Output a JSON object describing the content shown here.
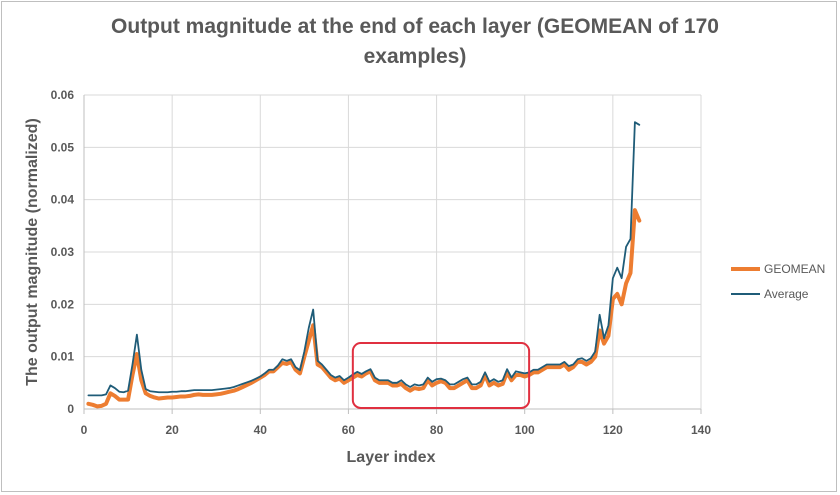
{
  "chart_data": {
    "type": "line",
    "title": "Output magnitude at the end of each layer (GEOMEAN of 170 examples)",
    "xlabel": "Layer index",
    "ylabel": "The output magnitude (normalized)",
    "xlim": [
      0,
      140
    ],
    "ylim": [
      0,
      0.06
    ],
    "x_ticks": [
      0,
      20,
      40,
      60,
      80,
      100,
      120,
      140
    ],
    "y_ticks": [
      0,
      0.01,
      0.02,
      0.03,
      0.04,
      0.05,
      0.06
    ],
    "x_tick_labels": [
      "0",
      "20",
      "40",
      "60",
      "80",
      "100",
      "120",
      "140"
    ],
    "y_tick_labels": [
      "0",
      "0.01",
      "0.02",
      "0.03",
      "0.04",
      "0.05",
      "0.06"
    ],
    "grid": "vertical and horizontal",
    "legend_position": "right",
    "highlight_box": {
      "x_range": [
        61,
        101
      ],
      "y_range": [
        0.0002,
        0.0126
      ],
      "color": "#e03040"
    },
    "series": [
      {
        "name": "GEOMEAN",
        "color": "#ed7d31",
        "x": [
          1,
          2,
          3,
          4,
          5,
          6,
          7,
          8,
          9,
          10,
          11,
          12,
          13,
          14,
          15,
          16,
          17,
          18,
          19,
          20,
          21,
          22,
          23,
          24,
          25,
          26,
          27,
          28,
          29,
          30,
          31,
          32,
          33,
          34,
          35,
          36,
          37,
          38,
          39,
          40,
          41,
          42,
          43,
          44,
          45,
          46,
          47,
          48,
          49,
          50,
          51,
          52,
          53,
          54,
          55,
          56,
          57,
          58,
          59,
          60,
          61,
          62,
          63,
          64,
          65,
          66,
          67,
          68,
          69,
          70,
          71,
          72,
          73,
          74,
          75,
          76,
          77,
          78,
          79,
          80,
          81,
          82,
          83,
          84,
          85,
          86,
          87,
          88,
          89,
          90,
          91,
          92,
          93,
          94,
          95,
          96,
          97,
          98,
          99,
          100,
          101,
          102,
          103,
          104,
          105,
          106,
          107,
          108,
          109,
          110,
          111,
          112,
          113,
          114,
          115,
          116,
          117,
          118,
          119,
          120,
          121,
          122,
          123,
          124,
          125,
          126
        ],
        "values": [
          0.001,
          0.0008,
          0.0005,
          0.0006,
          0.001,
          0.003,
          0.0025,
          0.0018,
          0.0018,
          0.0018,
          0.0065,
          0.0105,
          0.0055,
          0.003,
          0.0025,
          0.0022,
          0.002,
          0.0021,
          0.0022,
          0.0022,
          0.0023,
          0.0024,
          0.0024,
          0.0025,
          0.0027,
          0.0028,
          0.0027,
          0.0027,
          0.0027,
          0.0028,
          0.0029,
          0.0031,
          0.0033,
          0.0035,
          0.0038,
          0.0042,
          0.0046,
          0.005,
          0.0055,
          0.006,
          0.0065,
          0.0072,
          0.0072,
          0.008,
          0.0088,
          0.0086,
          0.009,
          0.0075,
          0.0068,
          0.01,
          0.013,
          0.016,
          0.0085,
          0.008,
          0.007,
          0.006,
          0.0055,
          0.0058,
          0.005,
          0.0055,
          0.006,
          0.0065,
          0.0062,
          0.0068,
          0.0072,
          0.0055,
          0.005,
          0.005,
          0.005,
          0.0045,
          0.0045,
          0.0048,
          0.004,
          0.0035,
          0.004,
          0.0038,
          0.004,
          0.0055,
          0.0045,
          0.005,
          0.0053,
          0.005,
          0.004,
          0.004,
          0.0045,
          0.005,
          0.0055,
          0.004,
          0.004,
          0.0045,
          0.0065,
          0.0045,
          0.005,
          0.0045,
          0.0048,
          0.007,
          0.0055,
          0.0065,
          0.0065,
          0.0062,
          0.0065,
          0.007,
          0.007,
          0.0075,
          0.008,
          0.008,
          0.008,
          0.008,
          0.0085,
          0.0075,
          0.008,
          0.009,
          0.009,
          0.0085,
          0.009,
          0.01,
          0.015,
          0.0125,
          0.014,
          0.021,
          0.022,
          0.02,
          0.024,
          0.026,
          0.038,
          0.036
        ]
      },
      {
        "name": "Average",
        "color": "#1f5c78",
        "x": [
          1,
          2,
          3,
          4,
          5,
          6,
          7,
          8,
          9,
          10,
          11,
          12,
          13,
          14,
          15,
          16,
          17,
          18,
          19,
          20,
          21,
          22,
          23,
          24,
          25,
          26,
          27,
          28,
          29,
          30,
          31,
          32,
          33,
          34,
          35,
          36,
          37,
          38,
          39,
          40,
          41,
          42,
          43,
          44,
          45,
          46,
          47,
          48,
          49,
          50,
          51,
          52,
          53,
          54,
          55,
          56,
          57,
          58,
          59,
          60,
          61,
          62,
          63,
          64,
          65,
          66,
          67,
          68,
          69,
          70,
          71,
          72,
          73,
          74,
          75,
          76,
          77,
          78,
          79,
          80,
          81,
          82,
          83,
          84,
          85,
          86,
          87,
          88,
          89,
          90,
          91,
          92,
          93,
          94,
          95,
          96,
          97,
          98,
          99,
          100,
          101,
          102,
          103,
          104,
          105,
          106,
          107,
          108,
          109,
          110,
          111,
          112,
          113,
          114,
          115,
          116,
          117,
          118,
          119,
          120,
          121,
          122,
          123,
          124,
          125,
          126
        ],
        "values": [
          0.0026,
          0.0026,
          0.0026,
          0.0026,
          0.0028,
          0.0045,
          0.004,
          0.0033,
          0.0032,
          0.0035,
          0.0085,
          0.0142,
          0.0075,
          0.0038,
          0.0034,
          0.0033,
          0.0032,
          0.0032,
          0.0032,
          0.0033,
          0.0033,
          0.0034,
          0.0034,
          0.0035,
          0.0036,
          0.0036,
          0.0036,
          0.0036,
          0.0036,
          0.0037,
          0.0038,
          0.0039,
          0.004,
          0.0042,
          0.0045,
          0.0048,
          0.0051,
          0.0054,
          0.0058,
          0.0062,
          0.0068,
          0.0075,
          0.0075,
          0.0083,
          0.0095,
          0.0092,
          0.0095,
          0.008,
          0.0074,
          0.011,
          0.0155,
          0.019,
          0.0092,
          0.0085,
          0.0075,
          0.0065,
          0.006,
          0.0063,
          0.0055,
          0.006,
          0.0066,
          0.0071,
          0.0067,
          0.0072,
          0.0076,
          0.006,
          0.0055,
          0.0055,
          0.0055,
          0.005,
          0.005,
          0.0055,
          0.0047,
          0.0042,
          0.0047,
          0.0045,
          0.0047,
          0.006,
          0.0052,
          0.0057,
          0.0058,
          0.0055,
          0.0047,
          0.0047,
          0.0052,
          0.0057,
          0.006,
          0.0047,
          0.0047,
          0.0052,
          0.007,
          0.0052,
          0.0057,
          0.0052,
          0.0055,
          0.0076,
          0.006,
          0.0072,
          0.007,
          0.0068,
          0.007,
          0.0075,
          0.0075,
          0.008,
          0.0085,
          0.0085,
          0.0085,
          0.0085,
          0.009,
          0.0082,
          0.0085,
          0.0095,
          0.0097,
          0.0092,
          0.0097,
          0.011,
          0.018,
          0.0135,
          0.016,
          0.025,
          0.027,
          0.025,
          0.031,
          0.0325,
          0.0548,
          0.0543
        ]
      }
    ]
  }
}
